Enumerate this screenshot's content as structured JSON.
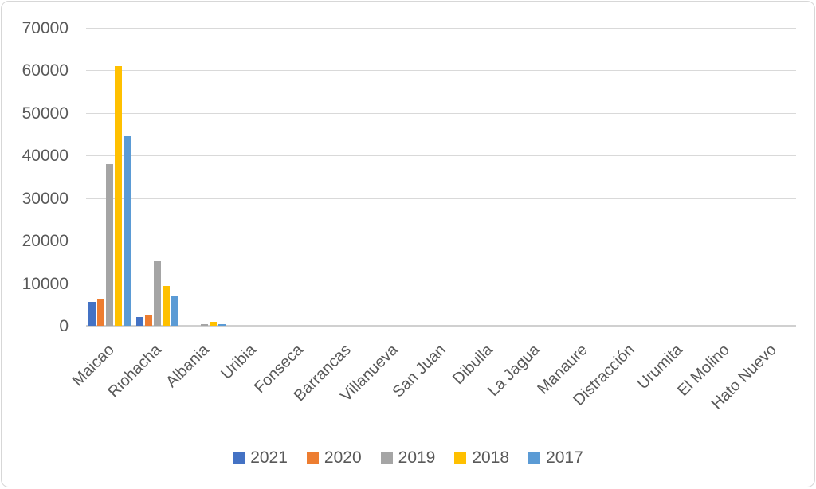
{
  "chart_data": {
    "type": "bar",
    "title": "",
    "xlabel": "",
    "ylabel": "",
    "categories": [
      "Maicao",
      "Riohacha",
      "Albania",
      "Uribia",
      "Fonseca",
      "Barrancas",
      "Villanueva",
      "San Juan",
      "Dibulla",
      "La Jagua",
      "Manaure",
      "Distracción",
      "Urumita",
      "El Molino",
      "Hato Nuevo"
    ],
    "series": [
      {
        "name": "2021",
        "color": "#4472C4",
        "values": [
          5700,
          2100,
          0,
          0,
          0,
          0,
          0,
          0,
          0,
          0,
          0,
          0,
          0,
          0,
          0
        ]
      },
      {
        "name": "2020",
        "color": "#ED7D31",
        "values": [
          6400,
          2700,
          0,
          0,
          0,
          0,
          0,
          0,
          0,
          0,
          0,
          0,
          0,
          0,
          0
        ]
      },
      {
        "name": "2019",
        "color": "#A5A5A5",
        "values": [
          38000,
          15100,
          400,
          0,
          0,
          0,
          0,
          0,
          0,
          0,
          0,
          0,
          0,
          0,
          0
        ]
      },
      {
        "name": "2018",
        "color": "#FFC000",
        "values": [
          61000,
          9400,
          900,
          0,
          0,
          0,
          0,
          0,
          0,
          0,
          0,
          0,
          0,
          0,
          0
        ]
      },
      {
        "name": "2017",
        "color": "#5B9BD5",
        "values": [
          44500,
          7000,
          300,
          0,
          0,
          0,
          0,
          0,
          0,
          0,
          0,
          0,
          0,
          0,
          0
        ]
      }
    ],
    "ylim": [
      0,
      70000
    ],
    "ytick_step": 10000,
    "ytick_labels": [
      "0",
      "10000",
      "20000",
      "30000",
      "40000",
      "50000",
      "60000",
      "70000"
    ],
    "grid": true,
    "gridline_color": "#d9d9d9",
    "axis_text_color": "#595959",
    "legend_position": "bottom"
  }
}
